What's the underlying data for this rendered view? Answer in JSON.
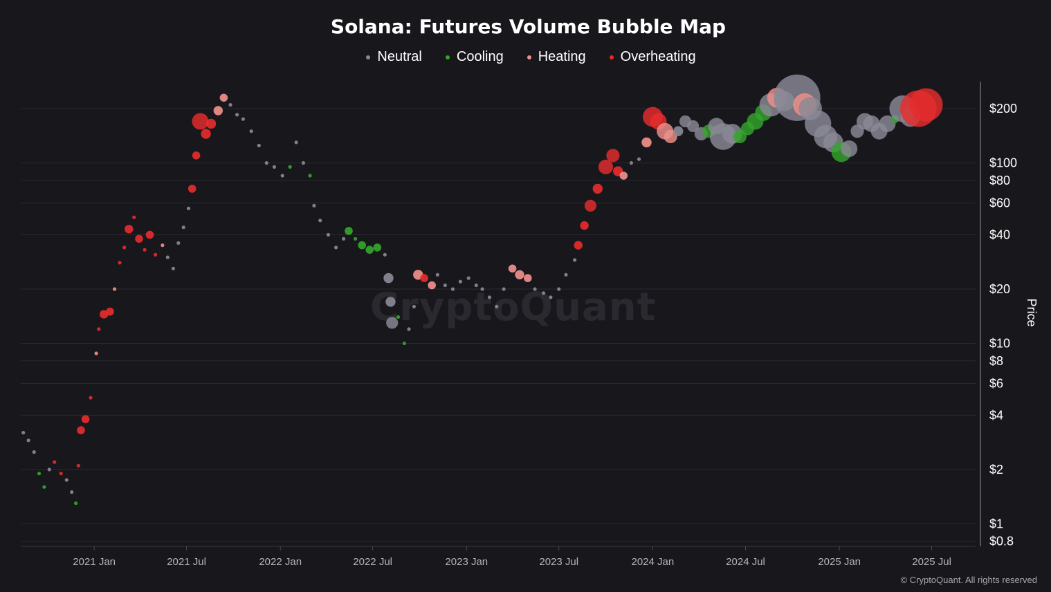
{
  "chart_data": {
    "type": "scatter",
    "title": "Solana: Futures Volume Bubble Map",
    "ylabel": "Price",
    "y_scale": "log",
    "ylim": [
      0.75,
      290
    ],
    "xlim": [
      "2020-08-10",
      "2025-09-25"
    ],
    "grid": true,
    "legend_position": "top-center",
    "y_ticks": [
      {
        "value": 0.8,
        "label": "$0.8"
      },
      {
        "value": 1,
        "label": "$1"
      },
      {
        "value": 2,
        "label": "$2"
      },
      {
        "value": 4,
        "label": "$4"
      },
      {
        "value": 6,
        "label": "$6"
      },
      {
        "value": 8,
        "label": "$8"
      },
      {
        "value": 10,
        "label": "$10"
      },
      {
        "value": 20,
        "label": "$20"
      },
      {
        "value": 40,
        "label": "$40"
      },
      {
        "value": 60,
        "label": "$60"
      },
      {
        "value": 80,
        "label": "$80"
      },
      {
        "value": 100,
        "label": "$100"
      },
      {
        "value": 200,
        "label": "$200"
      }
    ],
    "x_ticks": [
      {
        "value": "2021-01-01",
        "label": "2021 Jan"
      },
      {
        "value": "2021-07-01",
        "label": "2021 Jul"
      },
      {
        "value": "2022-01-01",
        "label": "2022 Jan"
      },
      {
        "value": "2022-07-01",
        "label": "2022 Jul"
      },
      {
        "value": "2023-01-01",
        "label": "2023 Jan"
      },
      {
        "value": "2023-07-01",
        "label": "2023 Jul"
      },
      {
        "value": "2024-01-01",
        "label": "2024 Jan"
      },
      {
        "value": "2024-07-01",
        "label": "2024 Jul"
      },
      {
        "value": "2025-01-01",
        "label": "2025 Jan"
      },
      {
        "value": "2025-07-01",
        "label": "2025 Jul"
      }
    ],
    "categories": [
      {
        "name": "Neutral",
        "color": "#8a8996"
      },
      {
        "name": "Cooling",
        "color": "#33a62b"
      },
      {
        "name": "Heating",
        "color": "#f0908a"
      },
      {
        "name": "Overheating",
        "color": "#e52c2c"
      }
    ],
    "points": [
      [
        "2020-08-15",
        3.2,
        "Neutral",
        1
      ],
      [
        "2020-08-25",
        2.9,
        "Neutral",
        1
      ],
      [
        "2020-09-05",
        2.5,
        "Neutral",
        1
      ],
      [
        "2020-09-15",
        1.9,
        "Cooling",
        1
      ],
      [
        "2020-09-25",
        1.6,
        "Cooling",
        1
      ],
      [
        "2020-10-05",
        2.0,
        "Neutral",
        1
      ],
      [
        "2020-10-15",
        2.2,
        "Overheating",
        1
      ],
      [
        "2020-10-28",
        1.9,
        "Overheating",
        1
      ],
      [
        "2020-11-08",
        1.75,
        "Neutral",
        1
      ],
      [
        "2020-11-18",
        1.5,
        "Neutral",
        1
      ],
      [
        "2020-11-26",
        1.3,
        "Cooling",
        1
      ],
      [
        "2020-12-01",
        2.1,
        "Overheating",
        1
      ],
      [
        "2020-12-06",
        3.3,
        "Overheating",
        1.2
      ],
      [
        "2020-12-15",
        3.8,
        "Overheating",
        1.2
      ],
      [
        "2020-12-25",
        5.0,
        "Overheating",
        1
      ],
      [
        "2021-01-05",
        8.8,
        "Heating",
        1
      ],
      [
        "2021-01-10",
        12.0,
        "Overheating",
        1
      ],
      [
        "2021-01-20",
        14.5,
        "Overheating",
        1.3
      ],
      [
        "2021-02-01",
        15.0,
        "Overheating",
        1.2
      ],
      [
        "2021-02-10",
        20.0,
        "Heating",
        1
      ],
      [
        "2021-02-20",
        28.0,
        "Overheating",
        1
      ],
      [
        "2021-03-01",
        34.0,
        "Overheating",
        1
      ],
      [
        "2021-03-10",
        43.0,
        "Overheating",
        1.3
      ],
      [
        "2021-03-20",
        50.0,
        "Overheating",
        1
      ],
      [
        "2021-03-30",
        38.0,
        "Overheating",
        1.2
      ],
      [
        "2021-04-10",
        33.0,
        "Overheating",
        1
      ],
      [
        "2021-04-20",
        40.0,
        "Overheating",
        1.2
      ],
      [
        "2021-05-01",
        31.0,
        "Overheating",
        1
      ],
      [
        "2021-05-15",
        35.0,
        "Heating",
        1
      ],
      [
        "2021-05-25",
        30.0,
        "Neutral",
        1
      ],
      [
        "2021-06-05",
        26.0,
        "Neutral",
        1
      ],
      [
        "2021-06-15",
        36.0,
        "Neutral",
        1
      ],
      [
        "2021-06-25",
        44.0,
        "Neutral",
        1
      ],
      [
        "2021-07-05",
        56.0,
        "Neutral",
        1
      ],
      [
        "2021-07-12",
        72.0,
        "Overheating",
        1.2
      ],
      [
        "2021-07-20",
        110.0,
        "Overheating",
        1.2
      ],
      [
        "2021-07-28",
        170.0,
        "Overheating",
        2.5
      ],
      [
        "2021-08-08",
        145.0,
        "Overheating",
        1.5
      ],
      [
        "2021-08-18",
        165.0,
        "Overheating",
        1.5
      ],
      [
        "2021-09-01",
        195.0,
        "Heating",
        1.4
      ],
      [
        "2021-09-12",
        230.0,
        "Heating",
        1.2
      ],
      [
        "2021-09-25",
        210.0,
        "Neutral",
        1
      ],
      [
        "2021-10-08",
        185.0,
        "Neutral",
        1
      ],
      [
        "2021-10-20",
        175.0,
        "Neutral",
        1
      ],
      [
        "2021-11-05",
        150.0,
        "Neutral",
        1
      ],
      [
        "2021-11-20",
        125.0,
        "Neutral",
        1
      ],
      [
        "2021-12-05",
        100.0,
        "Neutral",
        1
      ],
      [
        "2021-12-20",
        95.0,
        "Neutral",
        1
      ],
      [
        "2022-01-05",
        85.0,
        "Neutral",
        1
      ],
      [
        "2022-01-20",
        95.0,
        "Cooling",
        1
      ],
      [
        "2022-02-01",
        130.0,
        "Neutral",
        1
      ],
      [
        "2022-02-15",
        100.0,
        "Neutral",
        1
      ],
      [
        "2022-02-28",
        85.0,
        "Cooling",
        1
      ],
      [
        "2022-03-08",
        58.0,
        "Neutral",
        1
      ],
      [
        "2022-03-20",
        48.0,
        "Neutral",
        1
      ],
      [
        "2022-04-05",
        40.0,
        "Neutral",
        1
      ],
      [
        "2022-04-20",
        34.0,
        "Neutral",
        1
      ],
      [
        "2022-05-05",
        38.0,
        "Neutral",
        1
      ],
      [
        "2022-05-15",
        42.0,
        "Cooling",
        1.2
      ],
      [
        "2022-05-28",
        38.0,
        "Cooling",
        1
      ],
      [
        "2022-06-10",
        35.0,
        "Cooling",
        1.2
      ],
      [
        "2022-06-25",
        33.0,
        "Cooling",
        1.2
      ],
      [
        "2022-07-10",
        34.0,
        "Cooling",
        1.2
      ],
      [
        "2022-07-25",
        31.0,
        "Neutral",
        1
      ],
      [
        "2022-08-01",
        23.0,
        "Neutral",
        1.5
      ],
      [
        "2022-08-05",
        17.0,
        "Neutral",
        1.5
      ],
      [
        "2022-08-08",
        13.0,
        "Neutral",
        1.8
      ],
      [
        "2022-08-20",
        14.0,
        "Cooling",
        1
      ],
      [
        "2022-09-01",
        10.0,
        "Cooling",
        1
      ],
      [
        "2022-09-10",
        12.0,
        "Neutral",
        1
      ],
      [
        "2022-09-20",
        16.0,
        "Neutral",
        1
      ],
      [
        "2022-09-28",
        24.0,
        "Heating",
        1.5
      ],
      [
        "2022-10-10",
        23.0,
        "Overheating",
        1.2
      ],
      [
        "2022-10-25",
        21.0,
        "Heating",
        1.2
      ],
      [
        "2022-11-05",
        24.0,
        "Neutral",
        1
      ],
      [
        "2022-11-20",
        21.0,
        "Neutral",
        1
      ],
      [
        "2022-12-05",
        20.0,
        "Neutral",
        1
      ],
      [
        "2022-12-20",
        22.0,
        "Neutral",
        1
      ],
      [
        "2023-01-05",
        23.0,
        "Neutral",
        1
      ],
      [
        "2023-01-20",
        21.0,
        "Neutral",
        1
      ],
      [
        "2023-02-01",
        20.0,
        "Neutral",
        1
      ],
      [
        "2023-02-15",
        18.0,
        "Neutral",
        1
      ],
      [
        "2023-03-01",
        16.0,
        "Neutral",
        1
      ],
      [
        "2023-03-15",
        20.0,
        "Neutral",
        1
      ],
      [
        "2023-04-01",
        26.0,
        "Heating",
        1.2
      ],
      [
        "2023-04-15",
        24.0,
        "Heating",
        1.4
      ],
      [
        "2023-05-01",
        23.0,
        "Heating",
        1.2
      ],
      [
        "2023-05-15",
        20.0,
        "Neutral",
        1
      ],
      [
        "2023-06-01",
        19.0,
        "Neutral",
        1
      ],
      [
        "2023-06-15",
        18.0,
        "Neutral",
        1
      ],
      [
        "2023-07-01",
        20.0,
        "Neutral",
        1
      ],
      [
        "2023-07-15",
        24.0,
        "Neutral",
        1
      ],
      [
        "2023-08-01",
        29.0,
        "Neutral",
        1
      ],
      [
        "2023-08-08",
        35.0,
        "Overheating",
        1.3
      ],
      [
        "2023-08-20",
        45.0,
        "Overheating",
        1.3
      ],
      [
        "2023-09-01",
        58.0,
        "Overheating",
        1.8
      ],
      [
        "2023-09-15",
        72.0,
        "Overheating",
        1.5
      ],
      [
        "2023-10-01",
        95.0,
        "Overheating",
        2.2
      ],
      [
        "2023-10-15",
        110.0,
        "Overheating",
        2.0
      ],
      [
        "2023-10-25",
        90.0,
        "Overheating",
        1.5
      ],
      [
        "2023-11-05",
        85.0,
        "Heating",
        1.2
      ],
      [
        "2023-11-20",
        100.0,
        "Neutral",
        1
      ],
      [
        "2023-12-05",
        105.0,
        "Neutral",
        1
      ],
      [
        "2023-12-20",
        130.0,
        "Heating",
        1.5
      ],
      [
        "2024-01-01",
        180.0,
        "Overheating",
        3.0
      ],
      [
        "2024-01-12",
        170.0,
        "Overheating",
        2.5
      ],
      [
        "2024-01-25",
        150.0,
        "Heating",
        2.5
      ],
      [
        "2024-02-05",
        140.0,
        "Heating",
        2.0
      ],
      [
        "2024-02-20",
        150.0,
        "Neutral",
        1.5
      ],
      [
        "2024-03-05",
        170.0,
        "Neutral",
        1.8
      ],
      [
        "2024-03-20",
        160.0,
        "Neutral",
        1.8
      ],
      [
        "2024-04-05",
        145.0,
        "Neutral",
        2.0
      ],
      [
        "2024-04-20",
        150.0,
        "Cooling",
        2.0
      ],
      [
        "2024-05-05",
        160.0,
        "Neutral",
        2.5
      ],
      [
        "2024-05-18",
        140.0,
        "Neutral",
        4.0
      ],
      [
        "2024-06-05",
        145.0,
        "Neutral",
        3.0
      ],
      [
        "2024-06-20",
        140.0,
        "Cooling",
        2.0
      ],
      [
        "2024-07-05",
        155.0,
        "Cooling",
        2.0
      ],
      [
        "2024-07-20",
        170.0,
        "Cooling",
        2.5
      ],
      [
        "2024-08-05",
        190.0,
        "Cooling",
        2.5
      ],
      [
        "2024-08-20",
        210.0,
        "Neutral",
        3.5
      ],
      [
        "2024-09-01",
        230.0,
        "Heating",
        3.0
      ],
      [
        "2024-09-15",
        220.0,
        "Neutral",
        3.0
      ],
      [
        "2024-10-10",
        230.0,
        "Neutral",
        7.0
      ],
      [
        "2024-10-25",
        210.0,
        "Heating",
        3.5
      ],
      [
        "2024-11-05",
        200.0,
        "Neutral",
        3.5
      ],
      [
        "2024-11-20",
        165.0,
        "Neutral",
        4.0
      ],
      [
        "2024-12-05",
        140.0,
        "Neutral",
        3.5
      ],
      [
        "2024-12-20",
        130.0,
        "Neutral",
        3.0
      ],
      [
        "2025-01-05",
        115.0,
        "Cooling",
        3.0
      ],
      [
        "2025-01-20",
        120.0,
        "Neutral",
        2.5
      ],
      [
        "2025-02-05",
        150.0,
        "Neutral",
        2.0
      ],
      [
        "2025-02-20",
        170.0,
        "Neutral",
        2.5
      ],
      [
        "2025-03-05",
        165.0,
        "Neutral",
        2.5
      ],
      [
        "2025-03-20",
        150.0,
        "Neutral",
        2.5
      ],
      [
        "2025-04-05",
        165.0,
        "Neutral",
        2.5
      ],
      [
        "2025-04-20",
        175.0,
        "Cooling",
        1.2
      ],
      [
        "2025-05-05",
        200.0,
        "Neutral",
        4.0
      ],
      [
        "2025-05-20",
        180.0,
        "Neutral",
        3.0
      ],
      [
        "2025-06-05",
        200.0,
        "Overheating",
        5.5
      ],
      [
        "2025-06-20",
        210.0,
        "Overheating",
        5.0
      ]
    ]
  },
  "footer": "© CryptoQuant. All rights reserved",
  "watermark": "CryptoQuant"
}
